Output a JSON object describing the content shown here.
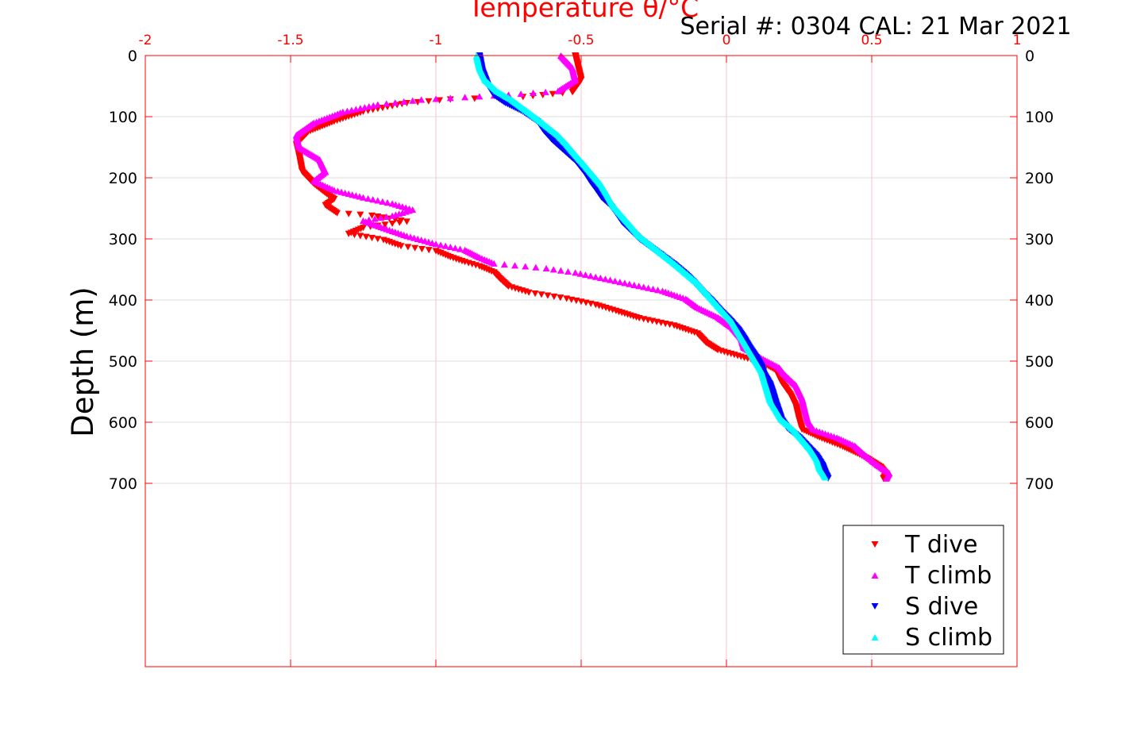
{
  "chart_data": {
    "type": "scatter",
    "title": "Temperature θ/°C",
    "subtitle": "Serial #: 0304  CAL: 21 Mar 2021",
    "xlabel": "Temperature θ/°C",
    "ylabel": "Depth (m)",
    "xlim": [
      -2,
      1
    ],
    "ylim": [
      0,
      1000
    ],
    "y_reversed": true,
    "x_ticks": [
      "-2",
      "-1.5",
      "-1",
      "-0.5",
      "0",
      "0.5",
      "1"
    ],
    "y_ticks": [
      "0",
      "100",
      "200",
      "300",
      "400",
      "500",
      "600",
      "700"
    ],
    "grid": true,
    "legend_position": "bottom-right",
    "colors": {
      "axis": "#ff0000",
      "grid": "#dcdcdc",
      "grid_x": "#ffc0cb"
    },
    "series": [
      {
        "name": "T dive",
        "color": "#ff0000",
        "marker": "triangle-down",
        "profile": [
          [
            -0.52,
            0
          ],
          [
            -0.51,
            20
          ],
          [
            -0.5,
            40
          ],
          [
            -0.53,
            60
          ],
          [
            -0.7,
            68
          ],
          [
            -0.95,
            72
          ],
          [
            -1.1,
            78
          ],
          [
            -1.25,
            92
          ],
          [
            -1.35,
            108
          ],
          [
            -1.44,
            125
          ],
          [
            -1.48,
            145
          ],
          [
            -1.47,
            165
          ],
          [
            -1.46,
            190
          ],
          [
            -1.42,
            210
          ],
          [
            -1.38,
            225
          ],
          [
            -1.35,
            235
          ],
          [
            -1.38,
            245
          ],
          [
            -1.34,
            258
          ],
          [
            -1.22,
            262
          ],
          [
            -1.1,
            272
          ],
          [
            -1.25,
            282
          ],
          [
            -1.3,
            292
          ],
          [
            -1.18,
            302
          ],
          [
            -1.12,
            312
          ],
          [
            -1.0,
            320
          ],
          [
            -0.95,
            330
          ],
          [
            -0.9,
            338
          ],
          [
            -0.85,
            345
          ],
          [
            -0.8,
            355
          ],
          [
            -0.78,
            365
          ],
          [
            -0.75,
            378
          ],
          [
            -0.68,
            388
          ],
          [
            -0.55,
            398
          ],
          [
            -0.45,
            408
          ],
          [
            -0.38,
            418
          ],
          [
            -0.3,
            430
          ],
          [
            -0.18,
            442
          ],
          [
            -0.1,
            455
          ],
          [
            -0.07,
            470
          ],
          [
            -0.03,
            482
          ],
          [
            0.05,
            493
          ],
          [
            0.12,
            502
          ],
          [
            0.17,
            515
          ],
          [
            0.19,
            535
          ],
          [
            0.22,
            555
          ],
          [
            0.24,
            575
          ],
          [
            0.25,
            595
          ],
          [
            0.26,
            612
          ],
          [
            0.32,
            625
          ],
          [
            0.4,
            640
          ],
          [
            0.48,
            658
          ],
          [
            0.53,
            673
          ],
          [
            0.55,
            685
          ],
          [
            0.54,
            692
          ]
        ]
      },
      {
        "name": "T climb",
        "color": "#ff00ff",
        "marker": "triangle-up",
        "profile": [
          [
            -0.57,
            0
          ],
          [
            -0.53,
            20
          ],
          [
            -0.52,
            40
          ],
          [
            -0.58,
            58
          ],
          [
            -0.75,
            64
          ],
          [
            -0.9,
            68
          ],
          [
            -1.05,
            72
          ],
          [
            -1.2,
            80
          ],
          [
            -1.32,
            92
          ],
          [
            -1.42,
            110
          ],
          [
            -1.48,
            130
          ],
          [
            -1.47,
            150
          ],
          [
            -1.4,
            170
          ],
          [
            -1.38,
            190
          ],
          [
            -1.42,
            205
          ],
          [
            -1.35,
            220
          ],
          [
            -1.25,
            232
          ],
          [
            -1.15,
            242
          ],
          [
            -1.08,
            252
          ],
          [
            -1.15,
            262
          ],
          [
            -1.25,
            270
          ],
          [
            -1.18,
            282
          ],
          [
            -1.1,
            295
          ],
          [
            -1.0,
            308
          ],
          [
            -0.9,
            318
          ],
          [
            -0.85,
            330
          ],
          [
            -0.8,
            340
          ],
          [
            -0.62,
            348
          ],
          [
            -0.52,
            355
          ],
          [
            -0.45,
            362
          ],
          [
            -0.35,
            372
          ],
          [
            -0.22,
            385
          ],
          [
            -0.14,
            398
          ],
          [
            -0.1,
            412
          ],
          [
            -0.03,
            428
          ],
          [
            0.02,
            445
          ],
          [
            0.05,
            462
          ],
          [
            0.06,
            478
          ],
          [
            0.12,
            495
          ],
          [
            0.18,
            510
          ],
          [
            0.2,
            522
          ],
          [
            0.24,
            540
          ],
          [
            0.26,
            560
          ],
          [
            0.27,
            580
          ],
          [
            0.28,
            598
          ],
          [
            0.3,
            612
          ],
          [
            0.38,
            625
          ],
          [
            0.44,
            638
          ],
          [
            0.48,
            655
          ],
          [
            0.52,
            670
          ],
          [
            0.56,
            683
          ],
          [
            0.55,
            692
          ]
        ]
      },
      {
        "name": "S dive",
        "color": "#0000ff",
        "marker": "triangle-down",
        "profile": [
          [
            -0.85,
            0
          ],
          [
            -0.84,
            25
          ],
          [
            -0.82,
            50
          ],
          [
            -0.8,
            65
          ],
          [
            -0.76,
            78
          ],
          [
            -0.7,
            92
          ],
          [
            -0.65,
            108
          ],
          [
            -0.63,
            122
          ],
          [
            -0.6,
            138
          ],
          [
            -0.56,
            155
          ],
          [
            -0.52,
            172
          ],
          [
            -0.49,
            190
          ],
          [
            -0.47,
            205
          ],
          [
            -0.45,
            218
          ],
          [
            -0.43,
            232
          ],
          [
            -0.4,
            245
          ],
          [
            -0.38,
            258
          ],
          [
            -0.36,
            272
          ],
          [
            -0.33,
            286
          ],
          [
            -0.3,
            300
          ],
          [
            -0.26,
            314
          ],
          [
            -0.22,
            328
          ],
          [
            -0.18,
            342
          ],
          [
            -0.14,
            358
          ],
          [
            -0.11,
            372
          ],
          [
            -0.08,
            388
          ],
          [
            -0.05,
            402
          ],
          [
            -0.02,
            418
          ],
          [
            0.01,
            432
          ],
          [
            0.04,
            448
          ],
          [
            0.06,
            462
          ],
          [
            0.08,
            478
          ],
          [
            0.1,
            492
          ],
          [
            0.12,
            508
          ],
          [
            0.13,
            522
          ],
          [
            0.15,
            538
          ],
          [
            0.16,
            552
          ],
          [
            0.17,
            568
          ],
          [
            0.18,
            582
          ],
          [
            0.19,
            596
          ],
          [
            0.21,
            610
          ],
          [
            0.25,
            625
          ],
          [
            0.28,
            640
          ],
          [
            0.31,
            655
          ],
          [
            0.33,
            670
          ],
          [
            0.34,
            682
          ],
          [
            0.35,
            692
          ]
        ]
      },
      {
        "name": "S climb",
        "color": "#00ffff",
        "marker": "triangle-up",
        "profile": [
          [
            -0.86,
            0
          ],
          [
            -0.85,
            20
          ],
          [
            -0.83,
            40
          ],
          [
            -0.79,
            58
          ],
          [
            -0.74,
            72
          ],
          [
            -0.7,
            86
          ],
          [
            -0.66,
            100
          ],
          [
            -0.62,
            115
          ],
          [
            -0.58,
            130
          ],
          [
            -0.55,
            145
          ],
          [
            -0.52,
            162
          ],
          [
            -0.49,
            178
          ],
          [
            -0.46,
            195
          ],
          [
            -0.43,
            212
          ],
          [
            -0.41,
            228
          ],
          [
            -0.39,
            245
          ],
          [
            -0.36,
            262
          ],
          [
            -0.33,
            278
          ],
          [
            -0.3,
            295
          ],
          [
            -0.26,
            310
          ],
          [
            -0.22,
            325
          ],
          [
            -0.18,
            340
          ],
          [
            -0.14,
            356
          ],
          [
            -0.1,
            372
          ],
          [
            -0.07,
            388
          ],
          [
            -0.04,
            404
          ],
          [
            -0.01,
            420
          ],
          [
            0.02,
            436
          ],
          [
            0.04,
            452
          ],
          [
            0.06,
            468
          ],
          [
            0.08,
            484
          ],
          [
            0.1,
            500
          ],
          [
            0.12,
            516
          ],
          [
            0.13,
            532
          ],
          [
            0.14,
            548
          ],
          [
            0.15,
            564
          ],
          [
            0.17,
            580
          ],
          [
            0.19,
            596
          ],
          [
            0.23,
            612
          ],
          [
            0.26,
            628
          ],
          [
            0.29,
            645
          ],
          [
            0.31,
            660
          ],
          [
            0.32,
            675
          ],
          [
            0.34,
            690
          ]
        ]
      }
    ]
  }
}
